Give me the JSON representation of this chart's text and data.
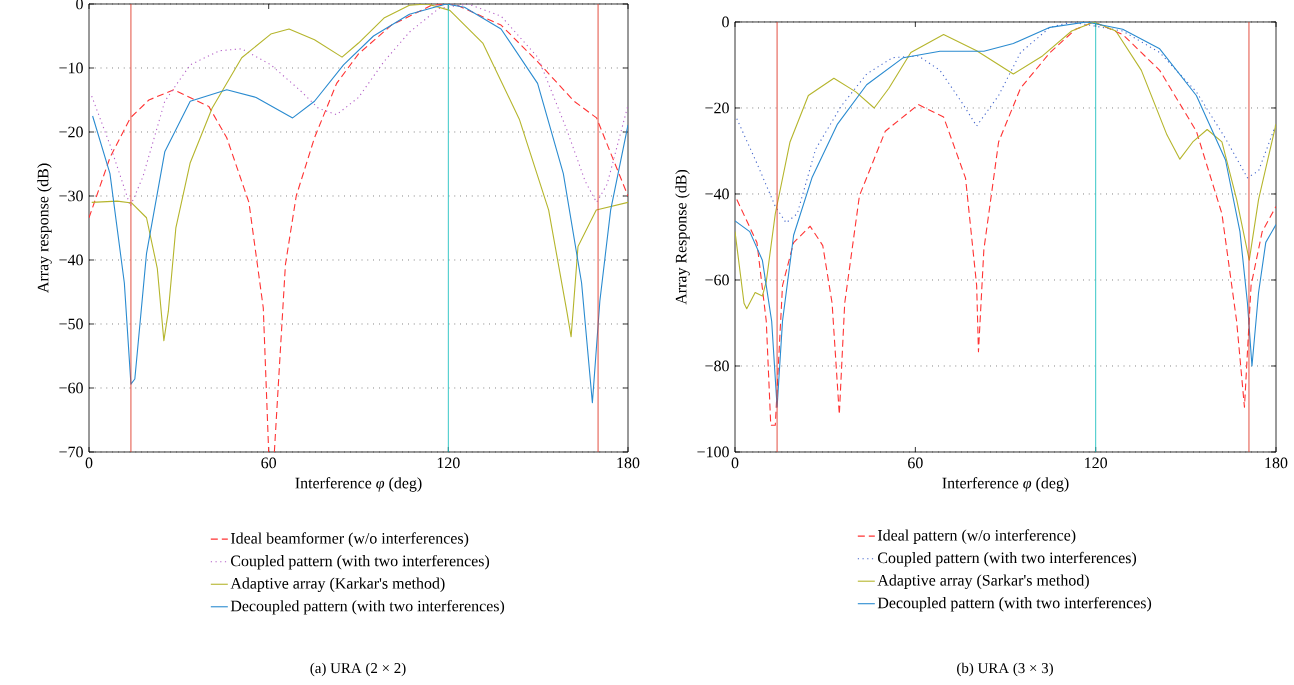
{
  "chart_data": [
    {
      "type": "line",
      "xlabel": "Interference *φ* (deg)",
      "ylabel": "Array response (dB)",
      "annotations": [
        "(a)  URA (2 × 2)"
      ],
      "xlim": [
        0,
        180
      ],
      "ylim": [
        -70,
        0
      ],
      "xticks": [
        0,
        60,
        120,
        180
      ],
      "yticks": [
        0,
        {
          "value": -10,
          "label": "−10"
        },
        {
          "value": -20,
          "label": "−20"
        },
        {
          "value": -30,
          "label": "−30"
        },
        {
          "value": -40,
          "label": "−40"
        },
        {
          "value": -50,
          "label": "−50"
        },
        {
          "value": -60,
          "label": "−60"
        },
        {
          "value": -70,
          "label": "−70"
        }
      ],
      "grid": "y",
      "legend": "bottom",
      "marker": "none",
      "ref_lines": [
        {
          "axis": "x",
          "value": 14,
          "color": "#e03a2a"
        },
        {
          "axis": "x",
          "value": 170,
          "color": "#e03a2a"
        },
        {
          "axis": "x",
          "value": 120,
          "color": "#22c0c0"
        }
      ],
      "series": [
        {
          "name": "Ideal beamformer (w/o interferences)",
          "color": "#ff3333",
          "line_style": "dashed",
          "x": [
            0,
            7,
            13.8,
            20,
            28.3,
            40,
            46,
            53.4,
            58.2,
            60,
            61,
            61.9,
            65.6,
            69.2,
            75.3,
            82.7,
            90,
            101,
            114.4,
            120,
            123,
            137.6,
            149.8,
            162,
            169.5,
            175.5,
            180
          ],
          "values": [
            -33.4,
            -24,
            -17.8,
            -15,
            -13.4,
            -16,
            -20.9,
            -31,
            -47.5,
            -70,
            null,
            -70,
            -40.7,
            -30,
            -20.9,
            -12.4,
            -7.8,
            -3.3,
            -0.2,
            0,
            -0.2,
            -3.3,
            -9,
            -15.2,
            -17.8,
            -24.8,
            -30
          ]
        },
        {
          "name": "Coupled pattern (with two interferences)",
          "color": "#b35fc7",
          "line_style": "dotted",
          "x": [
            0.9,
            7,
            13.8,
            18,
            25.3,
            33.8,
            43.6,
            51,
            60.7,
            70.5,
            76.6,
            82.7,
            90,
            98.5,
            107,
            116.8,
            126.6,
            137.6,
            150,
            159.6,
            165.7,
            169.5,
            173,
            180
          ],
          "values": [
            -14.4,
            -22,
            -31.6,
            -27,
            -15.2,
            -9.5,
            -7.3,
            -7,
            -9.5,
            -13.5,
            -16.3,
            -17.3,
            -14.6,
            -9,
            -4.4,
            -0.7,
            0,
            -1.9,
            -8.4,
            -19.7,
            -27.7,
            -31,
            -28.2,
            -15.8
          ]
        },
        {
          "name": "Adaptive array (Karkar's method)",
          "color": "#b5b52c",
          "line_style": "solid",
          "x": [
            0.9,
            9.4,
            14.3,
            19.2,
            22.8,
            25,
            26.5,
            29,
            33.8,
            41.1,
            51,
            60.7,
            66.8,
            75.3,
            84.5,
            90,
            98.5,
            107,
            113,
            120.5,
            131.5,
            143.7,
            153.5,
            159.6,
            161,
            163.3,
            169.4,
            180
          ],
          "values": [
            -31,
            -30.8,
            -31.1,
            -33.4,
            -41.3,
            -52.6,
            -48,
            -35,
            -24.8,
            -16.3,
            -8.4,
            -4.7,
            -3.9,
            -5.6,
            -8.3,
            -6.1,
            -2.2,
            -0.2,
            0,
            -1,
            -6.1,
            -18,
            -32.2,
            -48.1,
            -52,
            -37.9,
            -32.2,
            -31
          ]
        },
        {
          "name": "Decoupled pattern (with two interferences)",
          "color": "#2a8bd0",
          "line_style": "solid",
          "x": [
            1.2,
            7,
            11.8,
            14,
            15.3,
            19.2,
            25.3,
            33.8,
            46,
            55.8,
            68,
            75.3,
            85,
            95,
            107,
            119.3,
            125.4,
            137.6,
            149.8,
            158.4,
            164.5,
            168.1,
            170.6,
            174.2,
            180
          ],
          "values": [
            -17.5,
            -26.5,
            -43.6,
            -59.4,
            -58.6,
            -39,
            -23.1,
            -15.2,
            -13.4,
            -14.6,
            -17.8,
            -15.2,
            -9.5,
            -5,
            -1.6,
            0,
            -0.5,
            -3.9,
            -12.4,
            -26.5,
            -43.6,
            -62.3,
            -46.4,
            -32.2,
            -18.9
          ]
        }
      ]
    },
    {
      "type": "line",
      "xlabel": "Interference *φ* (deg)",
      "ylabel": "Array Response (dB)",
      "annotations": [
        "(b)  URA (3 × 3)"
      ],
      "xlim": [
        0,
        180
      ],
      "ylim": [
        -100,
        0
      ],
      "xticks": [
        0,
        60,
        120,
        180
      ],
      "yticks": [
        0,
        {
          "value": -20,
          "label": "−20"
        },
        {
          "value": -40,
          "label": "−40"
        },
        {
          "value": -60,
          "label": "−60"
        },
        {
          "value": -80,
          "label": "−80"
        },
        {
          "value": -100,
          "label": "−100"
        }
      ],
      "grid": "y",
      "legend": "bottom",
      "marker": "none",
      "ref_lines": [
        {
          "axis": "x",
          "value": 14,
          "color": "#e03a2a"
        },
        {
          "axis": "x",
          "value": 171,
          "color": "#e03a2a"
        },
        {
          "axis": "x",
          "value": 120,
          "color": "#22c0c0"
        }
      ],
      "series": [
        {
          "name": "Ideal pattern (w/o interference)",
          "color": "#ff3333",
          "line_style": "dashed",
          "x": [
            0.6,
            7.3,
            10.4,
            11.9,
            13.4,
            15.8,
            19.5,
            25,
            29.2,
            32.3,
            34.7,
            36.5,
            41.4,
            50,
            61,
            69.4,
            76.7,
            80.4,
            81,
            82.8,
            87.7,
            95,
            104.8,
            113.3,
            119.4,
            129,
            141.3,
            153.5,
            162,
            166.9,
            169.5,
            171.7,
            175.4,
            180
          ],
          "values": [
            -41.3,
            -51.3,
            -69.6,
            -93.8,
            -93.8,
            -61.3,
            -51.3,
            -47.5,
            -52,
            -65.4,
            -91.3,
            -65.4,
            -40.4,
            -25.4,
            -19.2,
            -22.1,
            -36.3,
            -61.3,
            -76.7,
            -52.9,
            -27.9,
            -15.4,
            -7.1,
            -1.7,
            0,
            -2.9,
            -11.25,
            -25.4,
            -44.6,
            -69.6,
            -89.6,
            -61.3,
            -48.75,
            -42.9
          ]
        },
        {
          "name": "Coupled pattern (with two interferences)",
          "color": "#4466cc",
          "line_style": "dotted",
          "x": [
            0.6,
            7.3,
            13.4,
            17,
            20.7,
            26.8,
            35.3,
            43.8,
            52.4,
            61,
            68.2,
            75.5,
            80.4,
            87.7,
            95,
            104.8,
            112,
            129,
            141.3,
            153.5,
            163.2,
            170.5,
            174.2,
            180
          ],
          "values": [
            -22.5,
            -32.9,
            -42.9,
            -46.7,
            -44.6,
            -29.6,
            -19.6,
            -12.1,
            -8.3,
            -7.9,
            -11.25,
            -18.75,
            -24.2,
            -17.1,
            -7.1,
            -1.25,
            0,
            -2.1,
            -7.1,
            -16.25,
            -27.1,
            -36.25,
            -34.6,
            -23.75
          ]
        },
        {
          "name": "Adaptive array (Sarkar's method)",
          "color": "#b5b52c",
          "line_style": "solid",
          "x": [
            0,
            3,
            3.9,
            6.7,
            9.1,
            10.4,
            13.4,
            18.3,
            24.4,
            32.9,
            40.2,
            46.3,
            51.2,
            58.5,
            69.4,
            80.4,
            92.6,
            102.3,
            112,
            119.4,
            126.7,
            135.2,
            143.7,
            148,
            152.3,
            157.1,
            162,
            166.9,
            171.1,
            174.2,
            180
          ],
          "values": [
            -48.75,
            -65.4,
            -66.7,
            -62.9,
            -63.75,
            -60.4,
            -44.6,
            -27.9,
            -17.1,
            -13.1,
            -16.25,
            -20,
            -15.4,
            -7.1,
            -2.9,
            -6.7,
            -12.1,
            -7.9,
            -2.1,
            0,
            -2.1,
            -11.25,
            -26.25,
            -31.9,
            -27.9,
            -25,
            -27.9,
            -41.25,
            -55.4,
            -41.25,
            -23.75
          ]
        },
        {
          "name": "Decoupled pattern (with two interferences)",
          "color": "#2a8bd0",
          "line_style": "solid",
          "x": [
            0,
            4.9,
            9.1,
            12.2,
            14,
            15.8,
            19.5,
            25.6,
            34.1,
            43.8,
            56,
            68.2,
            82.8,
            92.6,
            104.8,
            117,
            129,
            141.3,
            153.5,
            163.2,
            168,
            170.5,
            172,
            174.2,
            176.6,
            180
          ],
          "values": [
            -46.25,
            -48.75,
            -55.4,
            -69.6,
            -89.6,
            -69.6,
            -49.6,
            -36.25,
            -23.75,
            -14.6,
            -8.3,
            -6.8,
            -6.8,
            -5,
            -1.25,
            0,
            -1.7,
            -6.25,
            -17.1,
            -32.1,
            -48.75,
            -65.4,
            -80,
            -62.9,
            -51.25,
            -47.1
          ]
        }
      ]
    }
  ]
}
